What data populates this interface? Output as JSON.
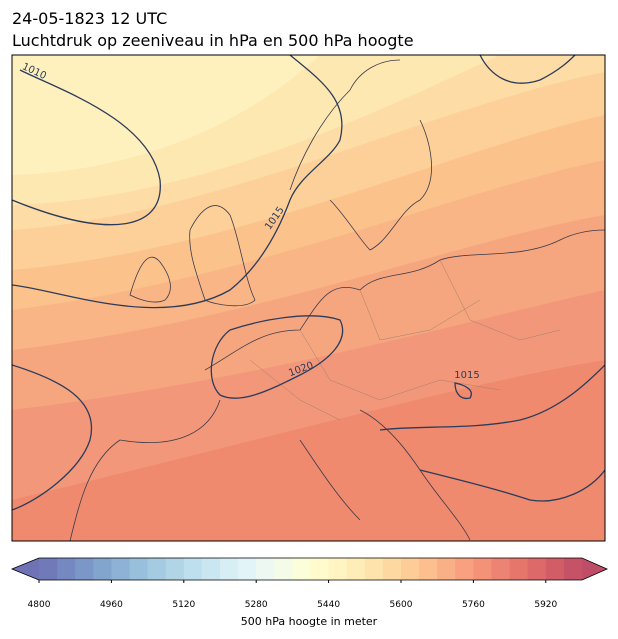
{
  "title": "24-05-1823 12 UTC",
  "subtitle": "Luchtdruk op zeeniveau in hPa en 500 hPa hoogte",
  "isobar_labels": [
    1010,
    1015,
    1020,
    1015
  ],
  "colorbar": {
    "label": "500 hPa hoogte in meter",
    "clim": [
      4800,
      6000
    ],
    "step": 40,
    "ticks": [
      4800,
      4960,
      5120,
      5280,
      5440,
      5600,
      5760,
      5920
    ],
    "colormap": [
      "#313695",
      "#4575b4",
      "#74add1",
      "#abd9e9",
      "#e0f3f8",
      "#ffffbf",
      "#fee090",
      "#fdae61",
      "#f46d43",
      "#d73027",
      "#a50026"
    ],
    "alpha": 0.7
  }
}
